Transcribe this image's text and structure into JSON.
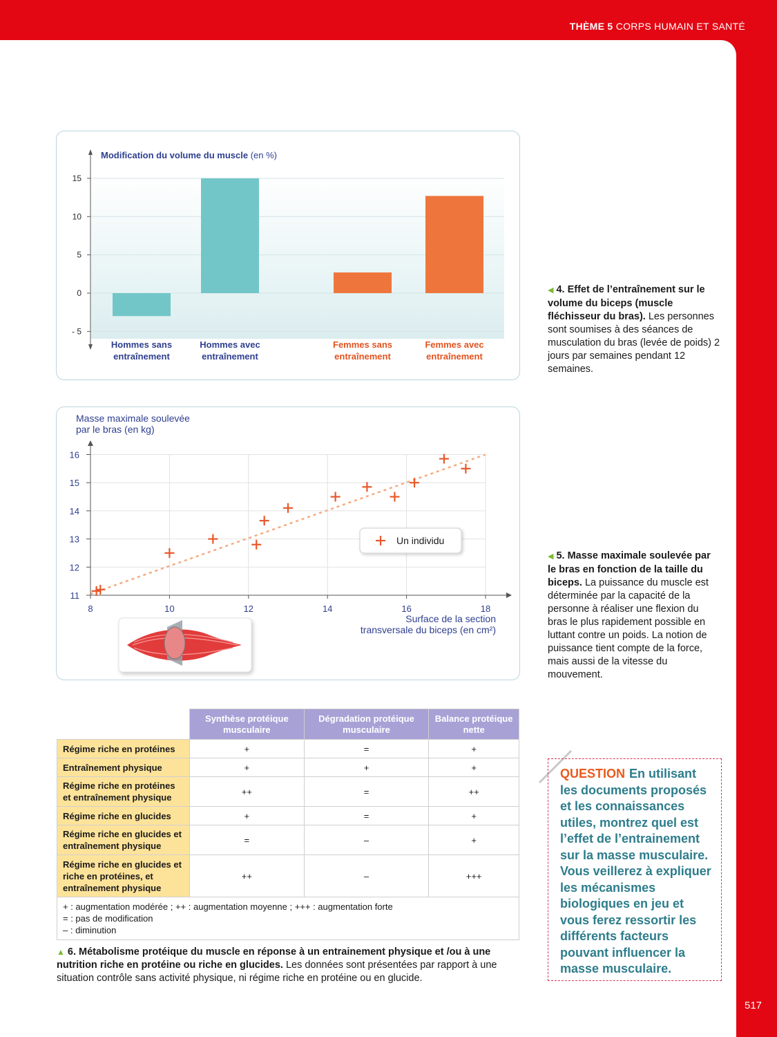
{
  "header": {
    "theme_label": "THÈME 5",
    "theme_title": "CORPS HUMAIN ET SANTÉ"
  },
  "chart1": {
    "ylabel_bold": "Modification du volume du muscle",
    "ylabel_unit": "(en %)",
    "colors": {
      "hommes": "#72c6c8",
      "femmes": "#ee763c"
    }
  },
  "chart_data": [
    {
      "type": "bar",
      "ylabel": "Modification du volume du muscle (en %)",
      "categories": [
        "Hommes sans entraînement",
        "Hommes avec entraînement",
        "Femmes sans entraînement",
        "Femmes avec entraînement"
      ],
      "category_lines": [
        [
          "Hommes sans",
          "entraînement"
        ],
        [
          "Hommes avec",
          "entraînement"
        ],
        [
          "Femmes sans",
          "entraînement"
        ],
        [
          "Femmes avec",
          "entraînement"
        ]
      ],
      "values": [
        -3,
        15,
        2.7,
        12.7
      ],
      "yticks": [
        15,
        10,
        5,
        0,
        -5
      ],
      "ytick_labels": [
        "15",
        "10",
        "5",
        "0",
        "- 5"
      ],
      "ylim": [
        -5,
        15
      ],
      "grid": true
    },
    {
      "type": "scatter",
      "ylabel_lines": [
        "Masse maximale soulevée",
        "par le bras (en kg)"
      ],
      "xlabel_lines": [
        "Surface de la section",
        "transversale du biceps (en cm²)"
      ],
      "xticks": [
        8,
        10,
        12,
        14,
        16,
        18
      ],
      "yticks": [
        11,
        12,
        13,
        14,
        15,
        16
      ],
      "xlim": [
        8,
        18
      ],
      "ylim": [
        11,
        16
      ],
      "legend": "Un individu",
      "grid": true,
      "points": [
        [
          8.15,
          11.15
        ],
        [
          8.25,
          11.2
        ],
        [
          10,
          12.5
        ],
        [
          11.1,
          13
        ],
        [
          12.2,
          12.8
        ],
        [
          12.4,
          13.65
        ],
        [
          13,
          14.1
        ],
        [
          14.2,
          14.5
        ],
        [
          15,
          14.85
        ],
        [
          15.7,
          14.5
        ],
        [
          16.2,
          15
        ],
        [
          16.95,
          15.85
        ],
        [
          17.5,
          15.5
        ]
      ],
      "trend": [
        [
          8,
          11.05
        ],
        [
          18,
          16
        ]
      ]
    }
  ],
  "captions": {
    "doc4": {
      "bold": "4. Effet de l’entraînement sur le volume du biceps (muscle fléchisseur du bras).",
      "text": " Les personnes sont soumises à des séances de musculation du bras (levée de poids) 2 jours par semaines pendant 12 semaines."
    },
    "doc5": {
      "bold": "5. Masse maximale soulevée par le bras en fonction de la taille du biceps.",
      "text": " La puissance du muscle est déterminée par la capacité de la personne à réaliser une flexion du bras le plus rapidement possible en luttant contre un poids. La notion de puissance tient compte de la force, mais aussi de la vitesse du mouvement."
    },
    "doc6": {
      "bold": "6. Métabolisme protéique du muscle en réponse à un entrainement physique et /ou à une nutrition riche en protéine ou riche en glucides.",
      "text": " Les données sont présentées par rapport à une situation contrôle sans activité physique, ni régime riche en protéine ou en glucide."
    }
  },
  "table": {
    "headers": [
      "Synthèse protéique musculaire",
      "Dégradation protéique musculaire",
      "Balance protéique nette"
    ],
    "rows": [
      {
        "label": "Régime riche en protéines",
        "values": [
          "+",
          "=",
          "+"
        ]
      },
      {
        "label": "Entraînement physique",
        "values": [
          "+",
          "+",
          "+"
        ]
      },
      {
        "label": "Régime riche en protéines et entraînement physique",
        "values": [
          "++",
          "=",
          "++"
        ]
      },
      {
        "label": "Régime riche en glucides",
        "values": [
          "+",
          "=",
          "+"
        ]
      },
      {
        "label": "Régime riche en glucides et entraînement physique",
        "values": [
          "=",
          "–",
          "+"
        ]
      },
      {
        "label": "Régime riche en glucides et riche en protéines, et entraînement physique",
        "values": [
          "++",
          "–",
          "+++"
        ]
      }
    ],
    "legend": [
      "+ : augmentation modérée ; ++ : augmentation moyenne ; +++ : augmentation forte",
      "= : pas de modification",
      "– : diminution"
    ]
  },
  "question": {
    "label": "QUESTION",
    "text": "En utilisant les documents proposés et les connaissances utiles, montrez quel est l’effet de l’entrainement sur la masse musculaire. Vous veillerez à expliquer les mécanismes biologiques en jeu et vous ferez ressortir les différents facteurs pouvant influencer la masse musculaire."
  },
  "page_number": "517"
}
